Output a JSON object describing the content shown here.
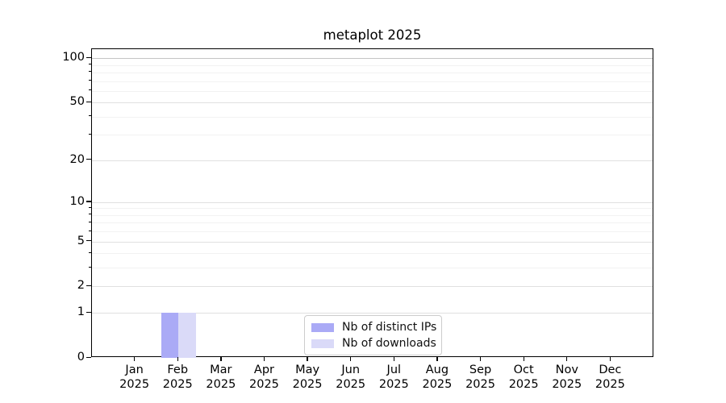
{
  "title": "metaplot 2025",
  "chart_data": {
    "type": "bar",
    "title": "metaplot 2025",
    "categories": [
      "Jan 2025",
      "Feb 2025",
      "Mar 2025",
      "Apr 2025",
      "May 2025",
      "Jun 2025",
      "Jul 2025",
      "Aug 2025",
      "Sep 2025",
      "Oct 2025",
      "Nov 2025",
      "Dec 2025"
    ],
    "series": [
      {
        "name": "Nb of distinct IPs",
        "color": "#aaaaf6",
        "values": [
          0,
          1,
          0,
          0,
          0,
          0,
          0,
          0,
          0,
          0,
          0,
          0
        ]
      },
      {
        "name": "Nb of downloads",
        "color": "#dadaf8",
        "values": [
          0,
          1,
          0,
          0,
          0,
          0,
          0,
          0,
          0,
          0,
          0,
          0
        ]
      }
    ],
    "xlabel": "",
    "ylabel": "",
    "yscale": "log1p",
    "yticks": [
      0,
      1,
      2,
      5,
      10,
      20,
      50,
      100
    ],
    "yticks_minor": [
      3,
      4,
      6,
      7,
      8,
      9,
      30,
      40,
      60,
      70,
      80,
      90
    ],
    "ylim": [
      0,
      100
    ],
    "grid": "y",
    "legend_position": "lower-center-inside"
  },
  "colors": {
    "bar_distinct_ips": "#aaaaf6",
    "bar_downloads": "#dadaf8",
    "grid_major": "#e0e0e0",
    "grid_minor": "#f2f2f2",
    "grid_top": "#c5c5c5",
    "axis": "#000000",
    "legend_border": "#cccccc"
  }
}
